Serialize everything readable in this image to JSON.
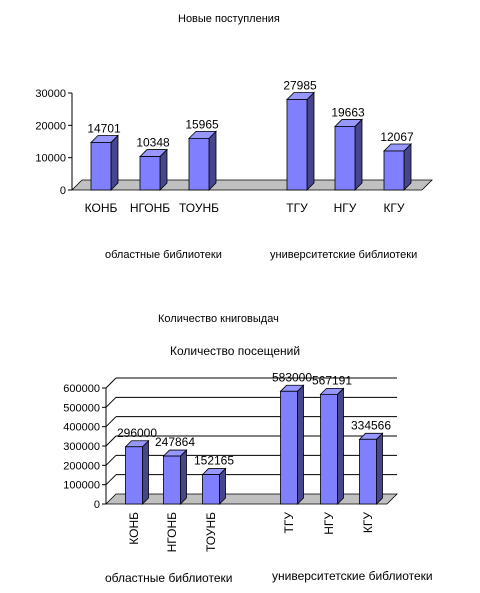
{
  "chart_data": [
    {
      "type": "bar",
      "title": "Новые поступления",
      "categories": [
        "КОНБ",
        "НГОНБ",
        "ТОУНБ",
        "ТГУ",
        "НГУ",
        "КГУ"
      ],
      "values": [
        14701,
        10348,
        15965,
        27985,
        19663,
        12067
      ],
      "value_labels": [
        "14701",
        "10348",
        "15965",
        "27985",
        "19663",
        "12067"
      ],
      "y_ticks": [
        "0",
        "10000",
        "20000",
        "30000"
      ],
      "ylim": [
        0,
        30000
      ],
      "group_labels": [
        "областные библиотеки",
        "университетские библиотеки"
      ],
      "bar_color": "#8080ff",
      "grid": false
    },
    {
      "type": "bar",
      "title": "Количество посещений",
      "categories": [
        "КОНБ",
        "НГОНБ",
        "ТОУНБ",
        "ТГУ",
        "НГУ",
        "КГУ"
      ],
      "values": [
        296000,
        247864,
        152165,
        583000,
        567191,
        334566
      ],
      "value_labels": [
        "296000",
        "247864",
        "152165",
        "583000",
        "567191",
        "334566"
      ],
      "y_ticks": [
        "0",
        "100000",
        "200000",
        "300000",
        "400000",
        "500000",
        "600000"
      ],
      "ylim": [
        0,
        600000
      ],
      "group_labels": [
        "областные библиотеки",
        "университетские библиотеки"
      ],
      "bar_color": "#8080ff",
      "grid": true
    }
  ],
  "extra_caption": "Количество книговыдач"
}
